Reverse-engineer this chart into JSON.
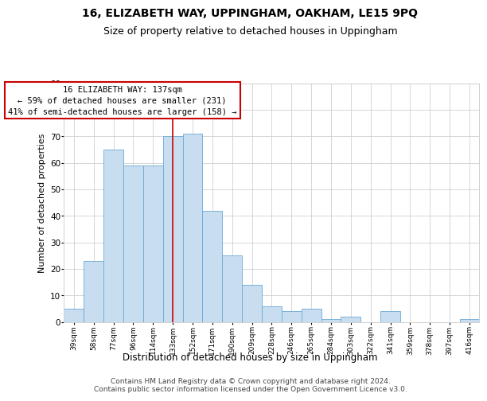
{
  "title": "16, ELIZABETH WAY, UPPINGHAM, OAKHAM, LE15 9PQ",
  "subtitle": "Size of property relative to detached houses in Uppingham",
  "xlabel": "Distribution of detached houses by size in Uppingham",
  "ylabel": "Number of detached properties",
  "bar_labels": [
    "39sqm",
    "58sqm",
    "77sqm",
    "96sqm",
    "114sqm",
    "133sqm",
    "152sqm",
    "171sqm",
    "190sqm",
    "209sqm",
    "228sqm",
    "246sqm",
    "265sqm",
    "284sqm",
    "303sqm",
    "322sqm",
    "341sqm",
    "359sqm",
    "378sqm",
    "397sqm",
    "416sqm"
  ],
  "bar_values": [
    5,
    23,
    65,
    59,
    59,
    70,
    71,
    42,
    25,
    14,
    6,
    4,
    5,
    1,
    2,
    0,
    4,
    0,
    0,
    0,
    1
  ],
  "bar_color": "#c9ddf0",
  "bar_edgecolor": "#6aaad4",
  "grid_color": "#d0d0d0",
  "background_color": "#ffffff",
  "plot_bg_color": "#ffffff",
  "annotation_text": "16 ELIZABETH WAY: 137sqm\n← 59% of detached houses are smaller (231)\n41% of semi-detached houses are larger (158) →",
  "vline_x_index": 5.0,
  "ylim": [
    0,
    90
  ],
  "yticks": [
    0,
    10,
    20,
    30,
    40,
    50,
    60,
    70,
    80,
    90
  ],
  "vline_color": "#cc0000",
  "annotation_box_color": "#ffffff",
  "annotation_box_edgecolor": "#cc0000",
  "footer_text": "Contains HM Land Registry data © Crown copyright and database right 2024.\nContains public sector information licensed under the Open Government Licence v3.0.",
  "title_fontsize": 10,
  "subtitle_fontsize": 9,
  "annotation_fontsize": 7.5,
  "footer_fontsize": 6.5,
  "ylabel_fontsize": 8,
  "xlabel_fontsize": 8.5
}
